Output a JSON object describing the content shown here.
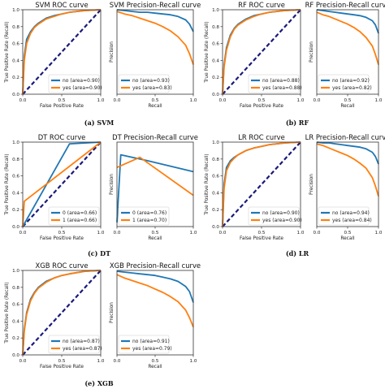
{
  "colors": {
    "no": "#1f77b4",
    "yes": "#ff7f0e",
    "diagonal": "#1a1a7a"
  },
  "captions": [
    "(a) SVM",
    "(b) RF",
    "(c) DT",
    "(d) LR",
    "(e) XGB"
  ],
  "chart_data": [
    {
      "type": "line",
      "kind": "roc",
      "title": "SVM ROC curve",
      "xlabel": "False Positive Rate",
      "ylabel": "True Positive Rate (Recall)",
      "xlim": [
        0,
        1
      ],
      "ylim": [
        0,
        1
      ],
      "xticks": [
        "0.0",
        "0.5",
        "1.0"
      ],
      "yticks": [
        "0.0",
        "0.2",
        "0.4",
        "0.6",
        "0.8",
        "1.0"
      ],
      "legend": "lower-right",
      "series": [
        {
          "name": "no (area=0.90)",
          "color": "no",
          "x": [
            0,
            0.02,
            0.05,
            0.1,
            0.15,
            0.2,
            0.3,
            0.4,
            0.5,
            0.6,
            0.8,
            1
          ],
          "y": [
            0,
            0.45,
            0.65,
            0.74,
            0.8,
            0.84,
            0.9,
            0.93,
            0.95,
            0.97,
            0.99,
            1
          ]
        },
        {
          "name": "yes (area=0.90)",
          "color": "yes",
          "x": [
            0,
            0.02,
            0.05,
            0.1,
            0.15,
            0.2,
            0.3,
            0.4,
            0.5,
            0.6,
            0.8,
            1
          ],
          "y": [
            0,
            0.4,
            0.6,
            0.72,
            0.79,
            0.83,
            0.89,
            0.92,
            0.95,
            0.97,
            0.99,
            1
          ]
        }
      ]
    },
    {
      "type": "line",
      "kind": "pr",
      "title": "SVM Precision-Recall curve",
      "xlabel": "Recall",
      "ylabel": "Precision",
      "xlim": [
        0,
        1
      ],
      "ylim": [
        0,
        1
      ],
      "xticks": [
        "0.0",
        "0.5",
        "1.0"
      ],
      "yticks": [],
      "legend": "lower-left",
      "series": [
        {
          "name": "no (area=0.93)",
          "color": "no",
          "x": [
            0,
            0.1,
            0.2,
            0.3,
            0.4,
            0.5,
            0.6,
            0.7,
            0.8,
            0.9,
            0.95,
            1
          ],
          "y": [
            1,
            0.99,
            0.98,
            0.97,
            0.97,
            0.96,
            0.95,
            0.94,
            0.92,
            0.88,
            0.83,
            0.74
          ]
        },
        {
          "name": "yes (area=0.83)",
          "color": "yes",
          "x": [
            0,
            0.1,
            0.2,
            0.3,
            0.4,
            0.5,
            0.6,
            0.7,
            0.8,
            0.9,
            0.95,
            1
          ],
          "y": [
            0.98,
            0.95,
            0.93,
            0.9,
            0.87,
            0.84,
            0.8,
            0.75,
            0.68,
            0.58,
            0.48,
            0.35
          ]
        }
      ]
    },
    {
      "type": "line",
      "kind": "roc",
      "title": "RF ROC curve",
      "xlabel": "False Positive Rate",
      "ylabel": "True Positive Rate (Recall)",
      "xlim": [
        0,
        1
      ],
      "ylim": [
        0,
        1
      ],
      "xticks": [
        "0.0",
        "0.5",
        "1.0"
      ],
      "yticks": [
        "0.0",
        "0.2",
        "0.4",
        "0.6",
        "0.8",
        "1.0"
      ],
      "legend": "lower-right",
      "series": [
        {
          "name": "no (area=0.88)",
          "color": "no",
          "x": [
            0,
            0.02,
            0.05,
            0.1,
            0.15,
            0.2,
            0.3,
            0.4,
            0.5,
            0.6,
            0.8,
            1
          ],
          "y": [
            0,
            0.35,
            0.55,
            0.7,
            0.78,
            0.83,
            0.89,
            0.93,
            0.95,
            0.97,
            0.99,
            1
          ]
        },
        {
          "name": "yes (area=0.88)",
          "color": "yes",
          "x": [
            0,
            0.02,
            0.05,
            0.1,
            0.15,
            0.2,
            0.3,
            0.4,
            0.5,
            0.6,
            0.8,
            1
          ],
          "y": [
            0,
            0.32,
            0.52,
            0.68,
            0.77,
            0.82,
            0.88,
            0.92,
            0.95,
            0.97,
            0.99,
            1
          ]
        }
      ]
    },
    {
      "type": "line",
      "kind": "pr",
      "title": "RF Precision-Recall curve",
      "xlabel": "Recall",
      "ylabel": "Precision",
      "xlim": [
        0,
        1
      ],
      "ylim": [
        0,
        1
      ],
      "xticks": [
        "0.0",
        "0.5",
        "1.0"
      ],
      "yticks": [],
      "legend": "lower-left",
      "series": [
        {
          "name": "no (area=0.92)",
          "color": "no",
          "x": [
            0,
            0.1,
            0.2,
            0.3,
            0.4,
            0.5,
            0.6,
            0.7,
            0.8,
            0.9,
            0.95,
            1
          ],
          "y": [
            1,
            0.99,
            0.98,
            0.97,
            0.96,
            0.95,
            0.94,
            0.93,
            0.91,
            0.87,
            0.82,
            0.72
          ]
        },
        {
          "name": "yes (area=0.82)",
          "color": "yes",
          "x": [
            0,
            0.1,
            0.2,
            0.3,
            0.4,
            0.5,
            0.6,
            0.7,
            0.8,
            0.9,
            0.95,
            1
          ],
          "y": [
            0.97,
            0.94,
            0.92,
            0.89,
            0.86,
            0.83,
            0.79,
            0.74,
            0.67,
            0.57,
            0.47,
            0.35
          ]
        }
      ]
    },
    {
      "type": "line",
      "kind": "roc",
      "title": "DT ROC curve",
      "xlabel": "False Positive Rate",
      "ylabel": "True Positive Rate (Recall)",
      "xlim": [
        0,
        1
      ],
      "ylim": [
        0,
        1
      ],
      "xticks": [
        "0.0",
        "0.5",
        "1.0"
      ],
      "yticks": [
        "0.0",
        "0.2",
        "0.4",
        "0.6",
        "0.8",
        "1.0"
      ],
      "legend": "lower-right",
      "series": [
        {
          "name": "0 (area=0.66)",
          "color": "no",
          "x": [
            0,
            0.6,
            1
          ],
          "y": [
            0,
            0.98,
            1
          ]
        },
        {
          "name": "1 (area=0.66)",
          "color": "yes",
          "x": [
            0,
            0.02,
            1
          ],
          "y": [
            0,
            0.3,
            1
          ]
        }
      ]
    },
    {
      "type": "line",
      "kind": "pr",
      "title": "DT Precision-Recall curve",
      "xlabel": "Recall",
      "ylabel": "Precision",
      "xlim": [
        0,
        1
      ],
      "ylim": [
        0,
        1
      ],
      "xticks": [
        "0.0",
        "0.5",
        "1.0"
      ],
      "yticks": [],
      "legend": "lower-left",
      "series": [
        {
          "name": "0 (area=0.76)",
          "color": "no",
          "x": [
            0,
            0.05,
            0.4,
            1
          ],
          "y": [
            0.05,
            0.85,
            0.78,
            0.65
          ]
        },
        {
          "name": "1 (area=0.70)",
          "color": "yes",
          "x": [
            0,
            0.3,
            1
          ],
          "y": [
            0.7,
            0.82,
            0.37
          ]
        }
      ]
    },
    {
      "type": "line",
      "kind": "roc",
      "title": "LR ROC curve",
      "xlabel": "False Positive Rate",
      "ylabel": "True Positive Rate (Recall)",
      "xlim": [
        0,
        1
      ],
      "ylim": [
        0,
        1
      ],
      "xticks": [
        "0.0",
        "0.5",
        "1.0"
      ],
      "yticks": [
        "0.0",
        "0.2",
        "0.4",
        "0.6",
        "0.8",
        "1.0"
      ],
      "legend": "lower-right",
      "series": [
        {
          "name": "no (area=0.90)",
          "color": "no",
          "x": [
            0,
            0.02,
            0.05,
            0.1,
            0.15,
            0.2,
            0.3,
            0.4,
            0.5,
            0.6,
            0.8,
            1
          ],
          "y": [
            0,
            0.5,
            0.7,
            0.78,
            0.82,
            0.85,
            0.9,
            0.93,
            0.95,
            0.97,
            0.99,
            1
          ]
        },
        {
          "name": "yes (area=0.90)",
          "color": "yes",
          "x": [
            0,
            0.02,
            0.05,
            0.1,
            0.15,
            0.2,
            0.3,
            0.4,
            0.5,
            0.6,
            0.8,
            1
          ],
          "y": [
            0,
            0.45,
            0.66,
            0.76,
            0.81,
            0.85,
            0.9,
            0.93,
            0.95,
            0.97,
            0.99,
            1
          ]
        }
      ]
    },
    {
      "type": "line",
      "kind": "pr",
      "title": "LR Precision-Recall curve",
      "xlabel": "Recall",
      "ylabel": "Precision",
      "xlim": [
        0,
        1
      ],
      "ylim": [
        0,
        1
      ],
      "xticks": [
        "0.0",
        "0.5",
        "1.0"
      ],
      "yticks": [],
      "legend": "lower-left",
      "series": [
        {
          "name": "no (area=0.94)",
          "color": "no",
          "x": [
            0,
            0.1,
            0.2,
            0.3,
            0.4,
            0.5,
            0.6,
            0.7,
            0.8,
            0.9,
            0.95,
            1
          ],
          "y": [
            1,
            0.99,
            0.99,
            0.98,
            0.97,
            0.96,
            0.95,
            0.94,
            0.92,
            0.88,
            0.83,
            0.74
          ]
        },
        {
          "name": "yes (area=0.84)",
          "color": "yes",
          "x": [
            0,
            0.1,
            0.2,
            0.3,
            0.4,
            0.5,
            0.6,
            0.7,
            0.8,
            0.9,
            0.95,
            1
          ],
          "y": [
            0.98,
            0.96,
            0.93,
            0.9,
            0.87,
            0.84,
            0.8,
            0.75,
            0.69,
            0.58,
            0.48,
            0.36
          ]
        }
      ]
    },
    {
      "type": "line",
      "kind": "roc",
      "title": "XGB ROC curve",
      "xlabel": "False Positive Rate",
      "ylabel": "True Positive Rate (Recall)",
      "xlim": [
        0,
        1
      ],
      "ylim": [
        0,
        1
      ],
      "xticks": [
        "0.0",
        "0.5",
        "1.0"
      ],
      "yticks": [
        "0.0",
        "0.2",
        "0.4",
        "0.6",
        "0.8",
        "1.0"
      ],
      "legend": "lower-right",
      "series": [
        {
          "name": "no (area=0.87)",
          "color": "no",
          "x": [
            0,
            0.02,
            0.05,
            0.1,
            0.15,
            0.2,
            0.3,
            0.4,
            0.5,
            0.6,
            0.8,
            1
          ],
          "y": [
            0,
            0.3,
            0.5,
            0.66,
            0.74,
            0.8,
            0.87,
            0.91,
            0.94,
            0.96,
            0.99,
            1
          ]
        },
        {
          "name": "yes (area=0.87)",
          "color": "yes",
          "x": [
            0,
            0.02,
            0.05,
            0.1,
            0.15,
            0.2,
            0.3,
            0.4,
            0.5,
            0.6,
            0.8,
            1
          ],
          "y": [
            0,
            0.28,
            0.48,
            0.64,
            0.73,
            0.79,
            0.86,
            0.91,
            0.94,
            0.96,
            0.99,
            1
          ]
        }
      ]
    },
    {
      "type": "line",
      "kind": "pr",
      "title": "XGB Precision-Recall curve",
      "xlabel": "Recall",
      "ylabel": "Precision",
      "xlim": [
        0,
        1
      ],
      "ylim": [
        0,
        1
      ],
      "xticks": [
        "0.0",
        "0.5",
        "1.0"
      ],
      "yticks": [],
      "legend": "lower-left",
      "series": [
        {
          "name": "no (area=0.91)",
          "color": "no",
          "x": [
            0,
            0.1,
            0.2,
            0.3,
            0.4,
            0.5,
            0.6,
            0.7,
            0.8,
            0.9,
            0.95,
            1
          ],
          "y": [
            0.99,
            0.98,
            0.97,
            0.96,
            0.95,
            0.94,
            0.92,
            0.9,
            0.87,
            0.81,
            0.75,
            0.62
          ]
        },
        {
          "name": "yes (area=0.79)",
          "color": "yes",
          "x": [
            0,
            0.1,
            0.2,
            0.3,
            0.4,
            0.5,
            0.6,
            0.7,
            0.8,
            0.9,
            0.95,
            1
          ],
          "y": [
            0.95,
            0.91,
            0.88,
            0.85,
            0.82,
            0.78,
            0.74,
            0.69,
            0.63,
            0.53,
            0.44,
            0.33
          ]
        }
      ]
    }
  ]
}
